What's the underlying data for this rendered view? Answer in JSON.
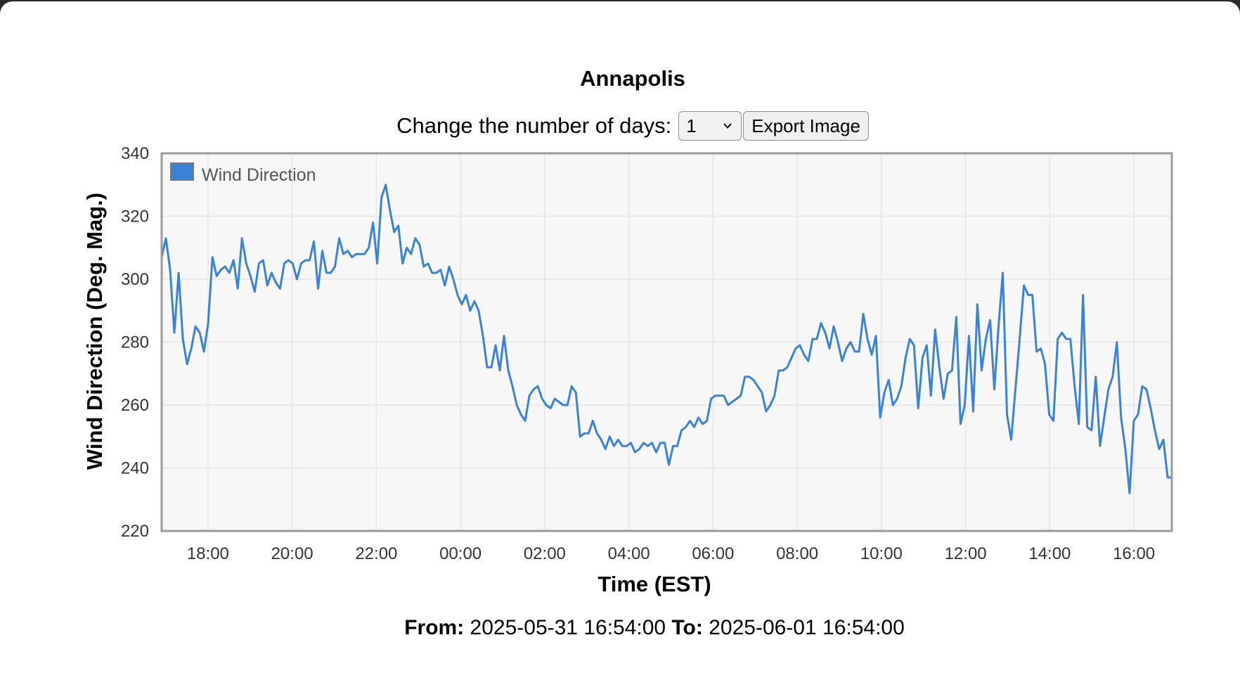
{
  "title": "Annapolis",
  "controls": {
    "days_label": "Change the number of days:",
    "days_selected": "1",
    "export_label": "Export Image"
  },
  "range": {
    "from_label": "From:",
    "from_value": "2025-05-31 16:54:00",
    "to_label": "To:",
    "to_value": "2025-06-01 16:54:00"
  },
  "chart_data": {
    "type": "line",
    "title": "",
    "xlabel": "Time (EST)",
    "ylabel": "Wind Direction (Deg. Mag.)",
    "ylim": [
      220,
      340
    ],
    "yticks": [
      220,
      240,
      260,
      280,
      300,
      320,
      340
    ],
    "xlim": [
      "2025-05-31 16:54",
      "2025-06-01 16:54"
    ],
    "xticks": [
      "18:00",
      "20:00",
      "22:00",
      "00:00",
      "02:00",
      "04:00",
      "06:00",
      "08:00",
      "10:00",
      "12:00",
      "14:00",
      "16:00"
    ],
    "grid": true,
    "legend": "top-left",
    "series": [
      {
        "name": "Wind Direction",
        "color": "#3a82d8",
        "start": "2025-05-31 16:54",
        "step_minutes": 6,
        "values": [
          307,
          313,
          303,
          283,
          302,
          281,
          273,
          278,
          285,
          283,
          277,
          286,
          307,
          301,
          303,
          304,
          302,
          306,
          297,
          313,
          305,
          301,
          296,
          305,
          306,
          298,
          302,
          299,
          297,
          305,
          306,
          305,
          300,
          305,
          306,
          306,
          312,
          297,
          309,
          302,
          302,
          304,
          313,
          308,
          309,
          307,
          308,
          308,
          308,
          310,
          318,
          305,
          326,
          330,
          322,
          315,
          317,
          305,
          310,
          308,
          313,
          311,
          304,
          305,
          302,
          302,
          303,
          298,
          304,
          300,
          295,
          292,
          295,
          290,
          293,
          290,
          282,
          272,
          272,
          279,
          271,
          282,
          271,
          266,
          260,
          257,
          255,
          263,
          265,
          266,
          262,
          260,
          259,
          262,
          261,
          260,
          260,
          266,
          264,
          250,
          251,
          251,
          255,
          251,
          249,
          246,
          250,
          247,
          249,
          247,
          247,
          248,
          245,
          246,
          248,
          247,
          248,
          245,
          248,
          248,
          241,
          247,
          247,
          252,
          253,
          255,
          253,
          256,
          254,
          255,
          262,
          263,
          263,
          263,
          260,
          261,
          262,
          263,
          269,
          269,
          268,
          266,
          264,
          258,
          260,
          263,
          271,
          271,
          272,
          275,
          278,
          279,
          276,
          274,
          281,
          281,
          286,
          283,
          278,
          285,
          280,
          274,
          278,
          280,
          277,
          277,
          289,
          281,
          276,
          282,
          256,
          264,
          268,
          260,
          262,
          266,
          275,
          281,
          279,
          259,
          275,
          279,
          263,
          284,
          272,
          262,
          270,
          271,
          288,
          254,
          260,
          282,
          258,
          292,
          271,
          281,
          287,
          265,
          285,
          302,
          257,
          249,
          265,
          281,
          298,
          295,
          295,
          277,
          278,
          273,
          257,
          255,
          281,
          283,
          281,
          281,
          266,
          254,
          295,
          253,
          252,
          269,
          247,
          256,
          265,
          269,
          280,
          256,
          246,
          232,
          255,
          257,
          266,
          265,
          259,
          252,
          246,
          249,
          237,
          237
        ]
      }
    ]
  }
}
